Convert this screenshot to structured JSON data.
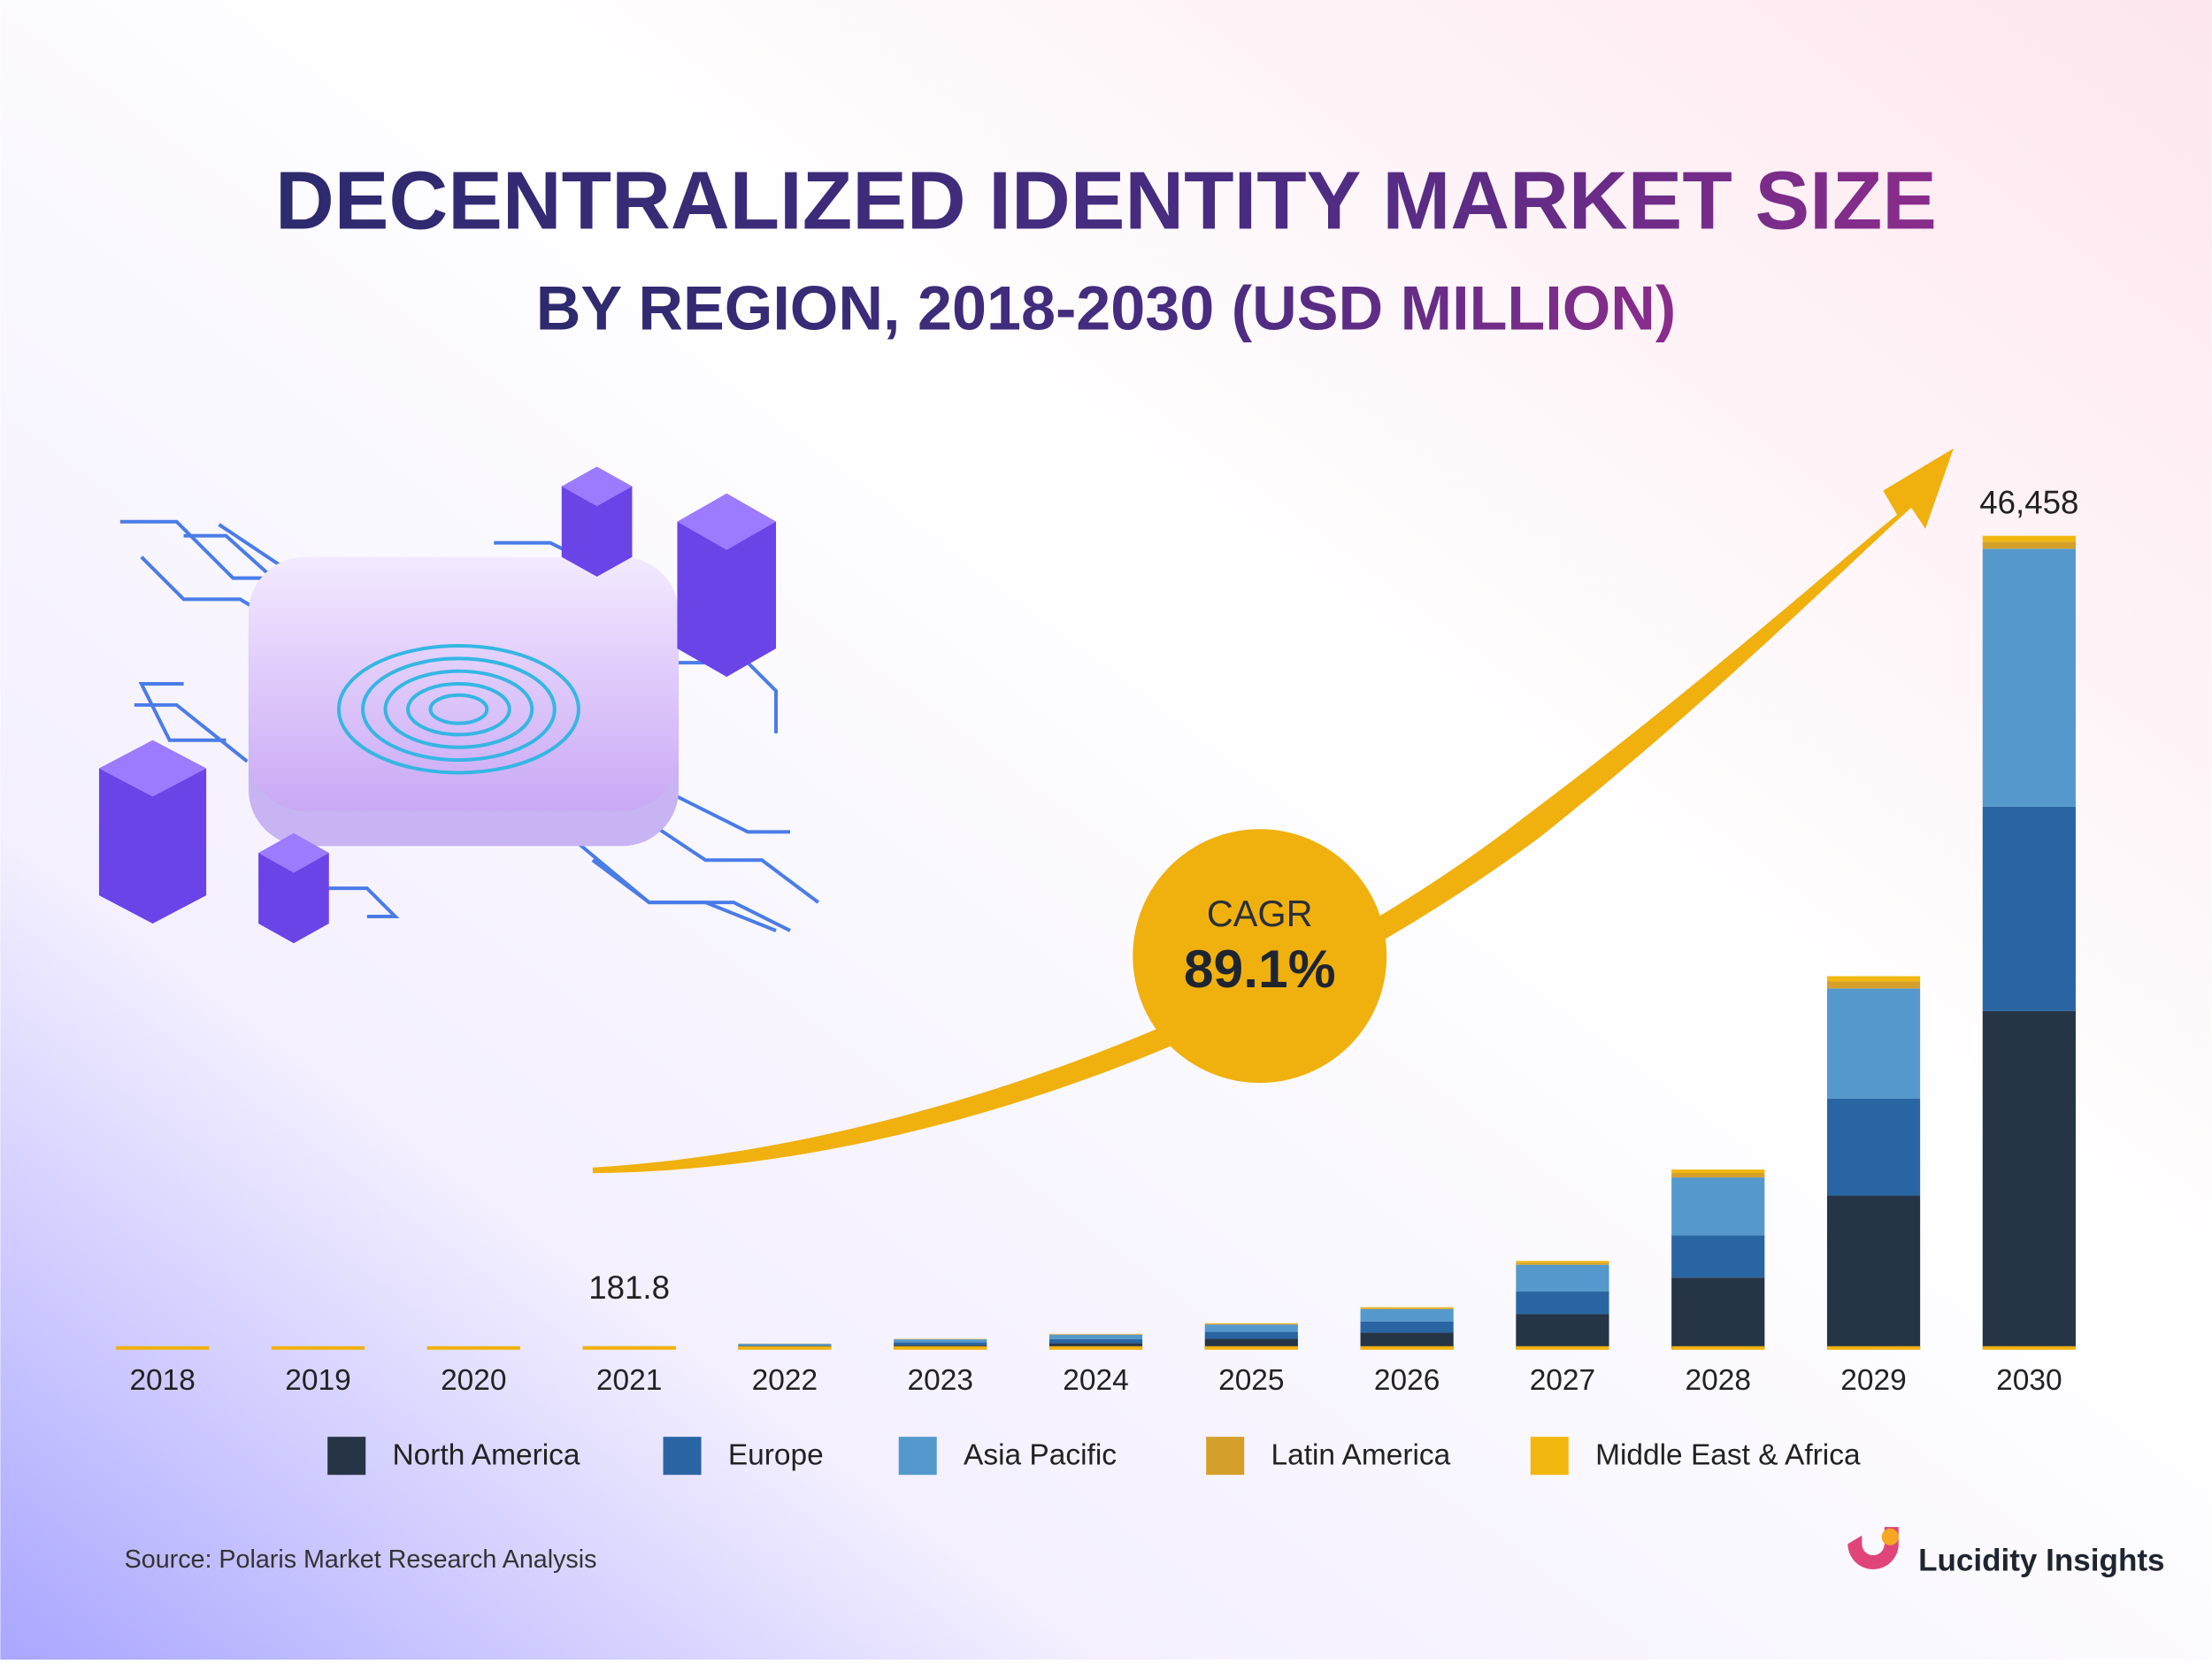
{
  "chart_data": {
    "type": "stacked-bar",
    "title": "DECENTRALIZED IDENTITY MARKET SIZE",
    "subtitle": "BY REGION, 2018-2030 (USD MILLION)",
    "categories": [
      "2018",
      "2019",
      "2020",
      "2021",
      "2022",
      "2023",
      "2024",
      "2025",
      "2026",
      "2027",
      "2028",
      "2029",
      "2030"
    ],
    "series": [
      {
        "name": "North America",
        "color": "#263545",
        "values": [
          12,
          22,
          40,
          72,
          130,
          240,
          350,
          600,
          950,
          2010,
          4100,
          8780,
          19320
        ]
      },
      {
        "name": "Europe",
        "color": "#2a65a3",
        "values": [
          8,
          15,
          27,
          49,
          90,
          160,
          240,
          400,
          650,
          1290,
          2420,
          5550,
          11670
        ]
      },
      {
        "name": "Asia Pacific",
        "color": "#5599cc",
        "values": [
          8,
          15,
          28,
          52,
          95,
          170,
          250,
          420,
          700,
          1530,
          3300,
          6280,
          14730
        ]
      },
      {
        "name": "Latin America",
        "color": "#d4a02a",
        "values": [
          1,
          2,
          3,
          5,
          9,
          17,
          25,
          40,
          60,
          120,
          250,
          400,
          400
        ]
      },
      {
        "name": "Middle East & Africa",
        "color": "#f2b70f",
        "values": [
          1,
          1,
          2,
          3.8,
          7,
          13,
          20,
          30,
          50,
          100,
          200,
          300,
          338
        ]
      }
    ],
    "annotations": [
      {
        "category_index": 3,
        "value": 181.8,
        "label": "181.8"
      },
      {
        "category_index": 12,
        "value": 46458,
        "label": "46,458"
      }
    ],
    "cagr_label": "CAGR",
    "cagr": "89.1%",
    "legend": "bottom",
    "source": "Source: Polaris Market Research Analysis",
    "brand": "Lucidity Insights"
  }
}
